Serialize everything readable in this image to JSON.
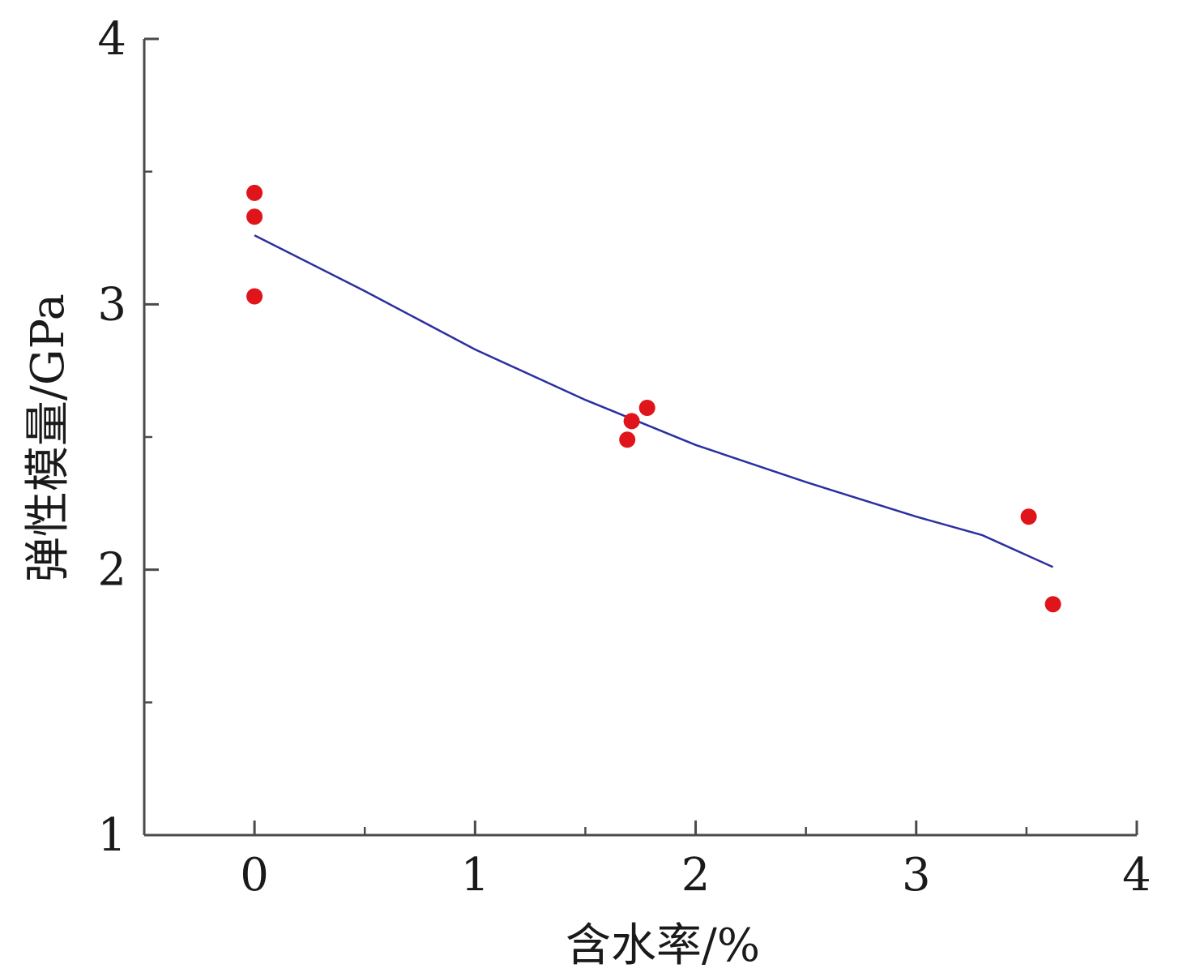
{
  "chart_data": {
    "type": "scatter",
    "title": "",
    "xlabel": "含水率/%",
    "ylabel": "弹性模量/GPa",
    "xlim": [
      -0.5,
      4
    ],
    "ylim": [
      1,
      4
    ],
    "x_ticks": [
      "0",
      "1",
      "2",
      "3",
      "4"
    ],
    "y_ticks": [
      "1",
      "2",
      "3",
      "4"
    ],
    "grid": false,
    "colors": {
      "points": "#e0141b",
      "fit": "#2b2fa0",
      "axis": "#4a4a4a"
    },
    "series": [
      {
        "type": "scatter",
        "points": [
          {
            "x": 0.0,
            "y": 3.42
          },
          {
            "x": 0.0,
            "y": 3.33
          },
          {
            "x": 0.0,
            "y": 3.03
          },
          {
            "x": 1.69,
            "y": 2.49
          },
          {
            "x": 1.71,
            "y": 2.56
          },
          {
            "x": 1.78,
            "y": 2.61
          },
          {
            "x": 3.51,
            "y": 2.2
          },
          {
            "x": 3.62,
            "y": 1.87
          }
        ]
      },
      {
        "type": "line",
        "points": [
          {
            "x": 0.0,
            "y": 3.26
          },
          {
            "x": 0.5,
            "y": 3.05
          },
          {
            "x": 1.0,
            "y": 2.83
          },
          {
            "x": 1.5,
            "y": 2.64
          },
          {
            "x": 2.0,
            "y": 2.47
          },
          {
            "x": 2.5,
            "y": 2.33
          },
          {
            "x": 3.0,
            "y": 2.2
          },
          {
            "x": 3.3,
            "y": 2.13
          },
          {
            "x": 3.62,
            "y": 2.01
          }
        ]
      }
    ]
  }
}
